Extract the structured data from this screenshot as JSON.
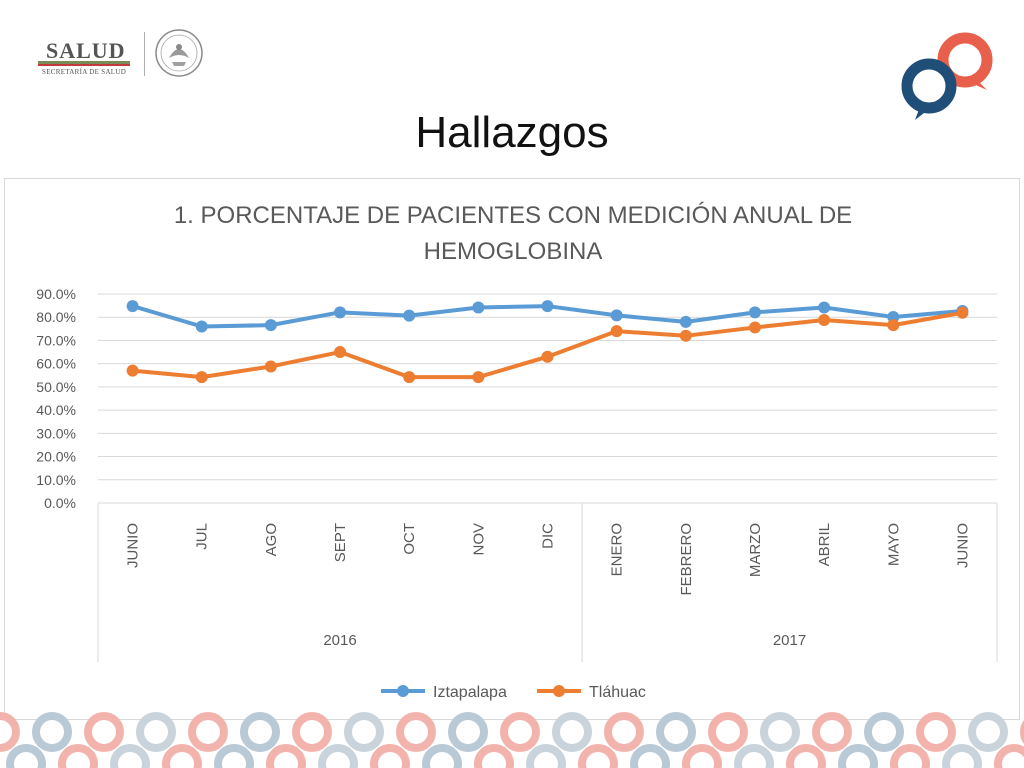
{
  "header": {
    "ministry_name": "SALUD",
    "ministry_subtitle": "SECRETARÍA DE SALUD",
    "seal_icon": "mexico-seal-icon",
    "brand_icon": "speech-rings-logo-icon"
  },
  "slide": {
    "title": "Hallazgos"
  },
  "colors": {
    "iztapalapa": "#5b9bd5",
    "tlahuac": "#ed7d31",
    "grid": "#d9d9d9",
    "text": "#595959",
    "brand_navy": "#1f4e79",
    "brand_coral": "#e8604c"
  },
  "chart_data": {
    "type": "line",
    "title_line1": "1.  PORCENTAJE DE PACIENTES CON MEDICIÓN ANUAL DE",
    "title_line2": "HEMOGLOBINA",
    "categories": [
      "JUNIO",
      "JUL",
      "AGO",
      "SEPT",
      "OCT",
      "NOV",
      "DIC",
      "ENERO",
      "FEBRERO",
      "MARZO",
      "ABRIL",
      "MAYO",
      "JUNIO"
    ],
    "groups": [
      {
        "label": "2016",
        "count": 7
      },
      {
        "label": "2017",
        "count": 6
      }
    ],
    "series": [
      {
        "name": "Iztapalapa",
        "values": [
          84.8,
          76.0,
          76.6,
          82.1,
          80.7,
          84.2,
          84.8,
          80.8,
          78.0,
          82.1,
          84.2,
          80.1,
          82.7
        ]
      },
      {
        "name": "Tláhuac",
        "values": [
          57.0,
          54.2,
          58.8,
          65.0,
          54.2,
          54.2,
          63.0,
          74.0,
          72.0,
          75.6,
          78.8,
          76.6,
          81.9
        ]
      }
    ],
    "ylim": [
      0,
      90
    ],
    "yticks": [
      "90.0%",
      "80.0%",
      "70.0%",
      "60.0%",
      "50.0%",
      "40.0%",
      "30.0%",
      "20.0%",
      "10.0%",
      "0.0%"
    ],
    "ytick_values": [
      90,
      80,
      70,
      60,
      50,
      40,
      30,
      20,
      10,
      0
    ],
    "grid": true,
    "legend_position": "bottom"
  }
}
